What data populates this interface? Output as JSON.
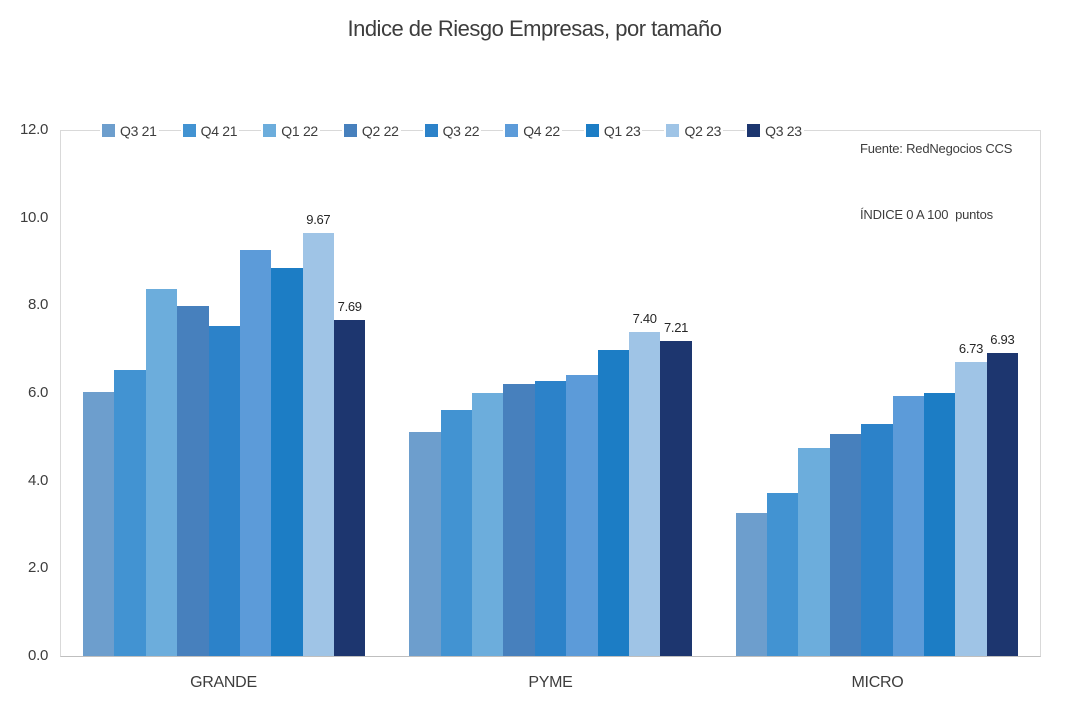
{
  "title": "Indice de Riesgo Empresas, por tamaño",
  "source_note": {
    "line1": "Fuente: RedNegocios CCS",
    "line2": "ÍNDICE 0 A 100  puntos"
  },
  "y_axis": {
    "ticks": [
      "12.0",
      "10.0",
      "8.0",
      "6.0",
      "4.0",
      "2.0",
      "0.0"
    ]
  },
  "chart_data": {
    "type": "bar",
    "title": "Indice de Riesgo Empresas, por tamaño",
    "categories": [
      "GRANDE",
      "PYME",
      "MICRO"
    ],
    "series": [
      {
        "name": "Q3 21",
        "color": "#6d9ecd",
        "values": [
          6.03,
          5.12,
          3.26
        ]
      },
      {
        "name": "Q4 21",
        "color": "#4293d2",
        "values": [
          6.53,
          5.62,
          3.73
        ]
      },
      {
        "name": "Q1 22",
        "color": "#6caddc",
        "values": [
          8.39,
          6.02,
          4.76
        ]
      },
      {
        "name": "Q2 22",
        "color": "#4780bd",
        "values": [
          8.01,
          6.21,
          5.08
        ]
      },
      {
        "name": "Q3 22",
        "color": "#2c82c9",
        "values": [
          7.54,
          6.29,
          5.3
        ]
      },
      {
        "name": "Q4 22",
        "color": "#5c9bd9",
        "values": [
          9.29,
          6.43,
          5.94
        ]
      },
      {
        "name": "Q1 23",
        "color": "#1c7dc5",
        "values": [
          8.86,
          7.0,
          6.02
        ]
      },
      {
        "name": "Q2 23",
        "color": "#9fc4e6",
        "values": [
          9.67,
          7.4,
          6.73
        ]
      },
      {
        "name": "Q3 23",
        "color": "#1d366f",
        "values": [
          7.69,
          7.21,
          6.93
        ]
      }
    ],
    "data_labels": [
      {
        "category": "GRANDE",
        "series": "Q2 23",
        "text": "9.67"
      },
      {
        "category": "GRANDE",
        "series": "Q3 23",
        "text": "7.69"
      },
      {
        "category": "PYME",
        "series": "Q2 23",
        "text": "7.40"
      },
      {
        "category": "PYME",
        "series": "Q3 23",
        "text": "7.21"
      },
      {
        "category": "MICRO",
        "series": "Q2 23",
        "text": "6.73"
      },
      {
        "category": "MICRO",
        "series": "Q3 23",
        "text": "6.93"
      }
    ],
    "ylim": [
      0,
      12
    ],
    "grid": false,
    "legend_position": "top",
    "source": "Fuente: RedNegocios CCS",
    "units_note": "ÍNDICE 0 A 100  puntos"
  }
}
